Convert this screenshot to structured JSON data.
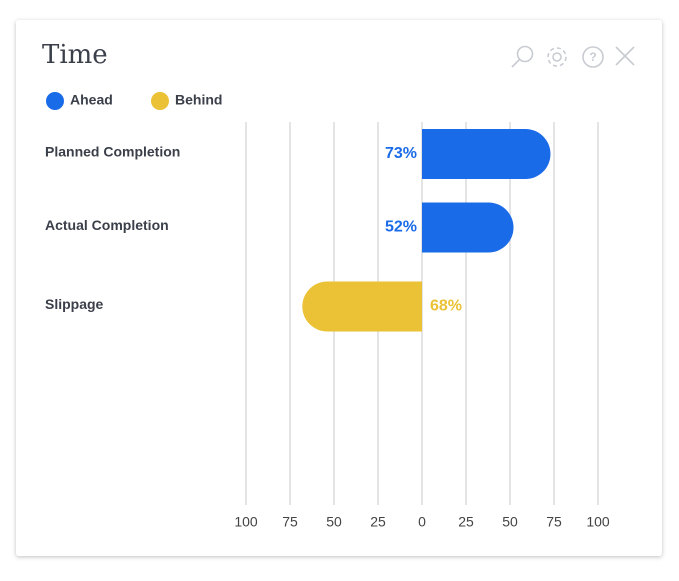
{
  "chart_data": {
    "type": "diverging-bar",
    "title": "Time",
    "categories": [
      "Planned Completion",
      "Actual Completion",
      "Slippage"
    ],
    "series": [
      {
        "name": "Ahead",
        "color": "#1a6be8",
        "values": [
          73,
          52,
          null
        ],
        "value_labels": [
          "73%",
          "52%",
          null
        ]
      },
      {
        "name": "Behind",
        "color": "#ebc135",
        "values": [
          null,
          null,
          -68
        ],
        "value_labels": [
          null,
          null,
          "68%"
        ]
      }
    ],
    "xlim": [
      -100,
      100
    ],
    "xticks": [
      {
        "value": -100,
        "label": "100"
      },
      {
        "value": -75,
        "label": "75"
      },
      {
        "value": -50,
        "label": "50"
      },
      {
        "value": -25,
        "label": "25"
      },
      0,
      25,
      50,
      75,
      100
    ],
    "grid": true,
    "legend": "top"
  }
}
